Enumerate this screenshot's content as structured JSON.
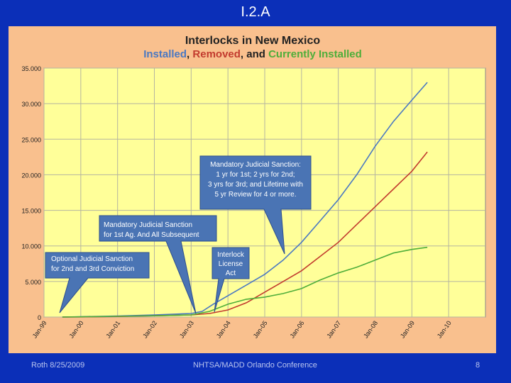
{
  "slide": {
    "title": "I.2.A"
  },
  "footer": {
    "left": "Roth 8/25/2009",
    "center": "NHTSA/MADD Orlando Conference",
    "right": "8"
  },
  "colors": {
    "installed": "#4a78c2",
    "removed": "#c23b2e",
    "current": "#4fae3a",
    "plot_bg": "#ffff99",
    "panel_bg": "#f9c08e",
    "callout": "#4a74b4"
  },
  "chart_data": {
    "type": "line",
    "title": "Interlocks in New Mexico",
    "subtitle_parts": [
      {
        "text": "Installed",
        "color": "#4a78c2"
      },
      {
        "text": ", ",
        "color": "#222222"
      },
      {
        "text": "Removed",
        "color": "#c23b2e"
      },
      {
        "text": ", and ",
        "color": "#222222"
      },
      {
        "text": "Currently Installed",
        "color": "#4fae3a"
      }
    ],
    "ylim": [
      0,
      35000
    ],
    "yticks": [
      0,
      5000,
      10000,
      15000,
      20000,
      25000,
      30000,
      35000
    ],
    "ytick_labels": [
      "0",
      "5.000",
      "10.000",
      "15.000",
      "20.000",
      "25.000",
      "30.000",
      "35.000"
    ],
    "xlim": [
      1999.0,
      2011.0
    ],
    "xticks": [
      1999,
      2000,
      2001,
      2002,
      2003,
      2004,
      2005,
      2006,
      2007,
      2008,
      2009,
      2010
    ],
    "xtick_labels": [
      "Jan-99",
      "Jan-00",
      "Jan-01",
      "Jan-02",
      "Jan-03",
      "Jan-04",
      "Jan-05",
      "Jan-06",
      "Jan-07",
      "Jan-08",
      "Jan-09",
      "Jan-10"
    ],
    "grid": true,
    "series": [
      {
        "name": "Installed",
        "color": "#4a78c2",
        "x": [
          1999.5,
          2000.0,
          2001.0,
          2002.0,
          2003.0,
          2003.3,
          2003.6,
          2004.0,
          2004.5,
          2005.0,
          2005.5,
          2006.0,
          2006.5,
          2007.0,
          2007.5,
          2008.0,
          2008.5,
          2009.0,
          2009.42
        ],
        "y": [
          0,
          50,
          150,
          300,
          500,
          800,
          1800,
          3000,
          4500,
          6000,
          8000,
          10500,
          13500,
          16500,
          20000,
          24000,
          27500,
          30500,
          33000
        ]
      },
      {
        "name": "Removed",
        "color": "#c23b2e",
        "x": [
          1999.5,
          2000.0,
          2001.0,
          2002.0,
          2003.0,
          2003.5,
          2004.0,
          2004.5,
          2005.0,
          2005.5,
          2006.0,
          2006.5,
          2007.0,
          2007.5,
          2008.0,
          2008.5,
          2009.0,
          2009.42
        ],
        "y": [
          0,
          20,
          80,
          180,
          300,
          500,
          1000,
          2000,
          3500,
          5000,
          6500,
          8500,
          10500,
          13000,
          15500,
          18000,
          20500,
          23200
        ]
      },
      {
        "name": "Currently Installed",
        "color": "#4fae3a",
        "x": [
          1999.5,
          2000.0,
          2001.0,
          2002.0,
          2003.0,
          2003.5,
          2004.0,
          2004.5,
          2005.0,
          2005.5,
          2006.0,
          2006.5,
          2007.0,
          2007.5,
          2008.0,
          2008.5,
          2009.0,
          2009.42
        ],
        "y": [
          0,
          30,
          100,
          180,
          300,
          800,
          1800,
          2500,
          2800,
          3300,
          4000,
          5200,
          6200,
          7000,
          8000,
          9000,
          9500,
          9800
        ]
      }
    ],
    "annotations": [
      {
        "name": "callout-optional-sanction",
        "lines": [
          "Optional Judicial Sanction",
          "for 2nd and 3rd Conviction"
        ]
      },
      {
        "name": "callout-mandatory-sanction",
        "lines": [
          "Mandatory Judicial Sanction",
          "for 1st Ag. And All Subsequent"
        ]
      },
      {
        "name": "callout-license-act",
        "lines": [
          "Interlock",
          "License",
          "Act"
        ]
      },
      {
        "name": "callout-mandatory-lifetime",
        "lines": [
          "Mandatory Judicial Sanction:",
          "1 yr for 1st; 2 yrs for 2nd;",
          "3 yrs for 3rd; and Lifetime with",
          "5 yr Review for 4 or more."
        ]
      }
    ]
  }
}
